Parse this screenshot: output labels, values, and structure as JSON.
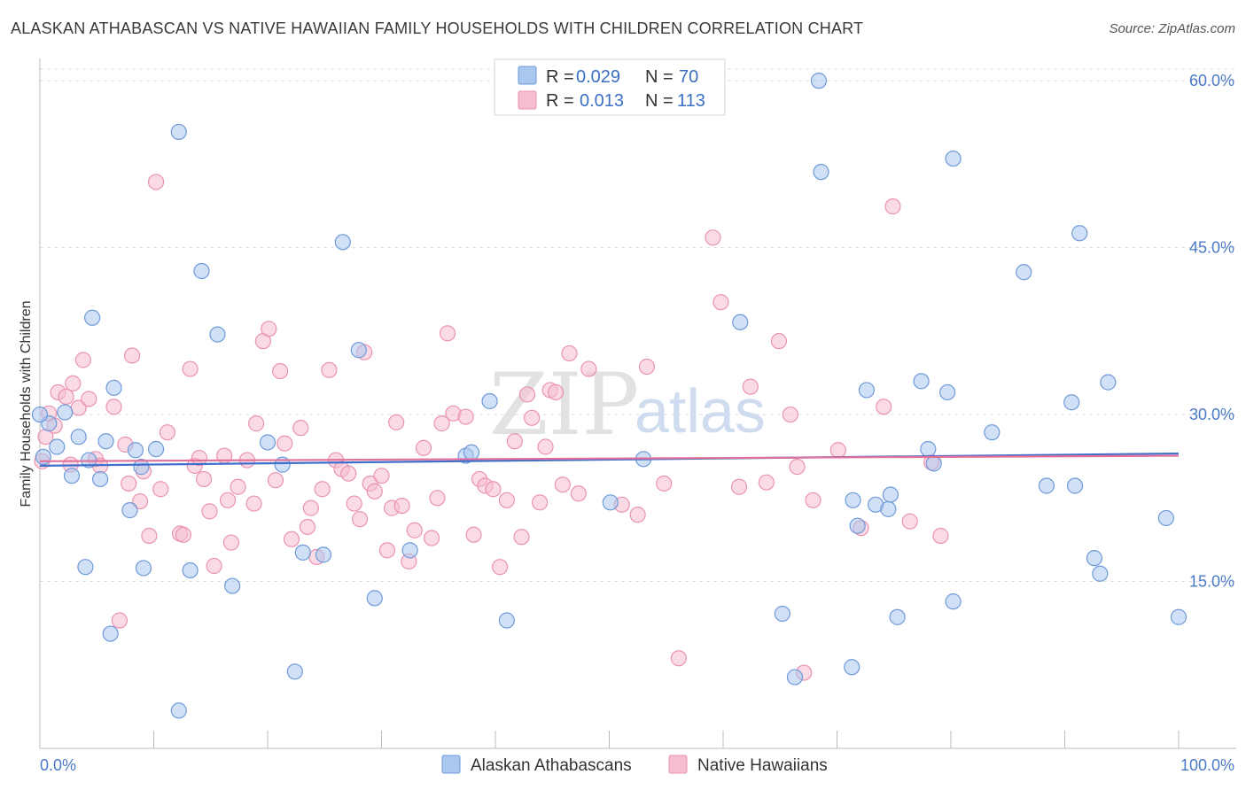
{
  "title": "ALASKAN ATHABASCAN VS NATIVE HAWAIIAN FAMILY HOUSEHOLDS WITH CHILDREN CORRELATION CHART",
  "source": "Source: ZipAtlas.com",
  "watermark": {
    "zip": "ZIP",
    "atlas": "atlas"
  },
  "colors": {
    "blue_fill": "#aac7ef",
    "blue_stroke": "#6f9ad8",
    "blue_line": "#3f6fcb",
    "pink_fill": "#f6bdd0",
    "pink_stroke": "#ea93b0",
    "pink_line": "#e2709a",
    "grid": "#dddddd",
    "tick_text": "#4a7ac8"
  },
  "legend": {
    "rows": [
      {
        "r_label": "R =",
        "r_value": "0.029",
        "n_label": "N =",
        "n_value": "70"
      },
      {
        "r_label": "R =",
        "r_value": "0.013",
        "n_label": "N =",
        "n_value": "113"
      }
    ]
  },
  "chart_data": {
    "type": "scatter",
    "title": "ALASKAN ATHABASCAN VS NATIVE HAWAIIAN FAMILY HOUSEHOLDS WITH CHILDREN CORRELATION CHART",
    "xlabel": "",
    "ylabel": "Family Households with Children",
    "xlim": [
      0,
      100
    ],
    "ylim": [
      0,
      62
    ],
    "x_tick_labels": [
      "0.0%",
      "100.0%"
    ],
    "y_ticks": [
      15,
      30,
      45,
      60
    ],
    "y_tick_labels": [
      "15.0%",
      "30.0%",
      "45.0%",
      "60.0%"
    ],
    "grid": true,
    "legend_position": "bottom",
    "series": [
      {
        "name": "Alaskan Athabascans",
        "r": 0.029,
        "n": 70,
        "trend": {
          "x": [
            0,
            100
          ],
          "y": [
            25.4,
            26.5
          ]
        },
        "points": [
          [
            0.3,
            26.2
          ],
          [
            0.8,
            29.2
          ],
          [
            1.5,
            27.1
          ],
          [
            2.2,
            30.2
          ],
          [
            2.8,
            24.5
          ],
          [
            3.4,
            28.0
          ],
          [
            4.0,
            16.3
          ],
          [
            4.3,
            25.9
          ],
          [
            4.6,
            38.7
          ],
          [
            5.3,
            24.2
          ],
          [
            5.8,
            27.6
          ],
          [
            6.2,
            10.3
          ],
          [
            6.5,
            32.4
          ],
          [
            7.9,
            21.4
          ],
          [
            8.4,
            26.8
          ],
          [
            8.9,
            25.3
          ],
          [
            9.1,
            16.2
          ],
          [
            10.2,
            26.9
          ],
          [
            12.2,
            55.4
          ],
          [
            12.2,
            3.4
          ],
          [
            13.2,
            16.0
          ],
          [
            14.2,
            42.9
          ],
          [
            15.6,
            37.2
          ],
          [
            16.9,
            14.6
          ],
          [
            20.0,
            27.5
          ],
          [
            21.3,
            25.5
          ],
          [
            22.4,
            6.9
          ],
          [
            23.1,
            17.6
          ],
          [
            24.9,
            17.4
          ],
          [
            26.6,
            45.5
          ],
          [
            28.0,
            35.8
          ],
          [
            29.4,
            13.5
          ],
          [
            32.5,
            17.8
          ],
          [
            37.4,
            26.3
          ],
          [
            37.9,
            26.6
          ],
          [
            39.5,
            31.2
          ],
          [
            41.0,
            11.5
          ],
          [
            50.1,
            22.1
          ],
          [
            53.0,
            26.0
          ],
          [
            61.5,
            38.3
          ],
          [
            65.2,
            12.1
          ],
          [
            66.3,
            6.4
          ],
          [
            68.4,
            60.0
          ],
          [
            68.6,
            51.8
          ],
          [
            71.3,
            7.3
          ],
          [
            71.4,
            22.3
          ],
          [
            71.8,
            20.0
          ],
          [
            72.6,
            32.2
          ],
          [
            73.4,
            21.9
          ],
          [
            74.5,
            21.5
          ],
          [
            74.7,
            22.8
          ],
          [
            75.3,
            11.8
          ],
          [
            77.4,
            33.0
          ],
          [
            78.0,
            26.9
          ],
          [
            78.5,
            25.6
          ],
          [
            79.7,
            32.0
          ],
          [
            80.2,
            53.0
          ],
          [
            80.2,
            13.2
          ],
          [
            83.6,
            28.4
          ],
          [
            86.4,
            42.8
          ],
          [
            88.4,
            23.6
          ],
          [
            90.6,
            31.1
          ],
          [
            90.9,
            23.6
          ],
          [
            91.3,
            46.3
          ],
          [
            92.6,
            17.1
          ],
          [
            93.1,
            15.7
          ],
          [
            93.8,
            32.9
          ],
          [
            98.9,
            20.7
          ],
          [
            100.0,
            11.8
          ],
          [
            0.0,
            30.0
          ]
        ]
      },
      {
        "name": "Native Hawaiians",
        "r": 0.013,
        "n": 113,
        "trend": {
          "x": [
            0,
            100
          ],
          "y": [
            25.8,
            26.3
          ]
        },
        "points": [
          [
            0.2,
            25.8
          ],
          [
            0.5,
            28.0
          ],
          [
            0.8,
            30.1
          ],
          [
            1.3,
            29.0
          ],
          [
            1.6,
            32.0
          ],
          [
            2.3,
            31.6
          ],
          [
            2.7,
            25.5
          ],
          [
            2.9,
            32.8
          ],
          [
            3.4,
            30.6
          ],
          [
            3.8,
            34.9
          ],
          [
            4.3,
            31.4
          ],
          [
            4.9,
            26.0
          ],
          [
            5.3,
            25.4
          ],
          [
            6.5,
            30.7
          ],
          [
            7.0,
            11.5
          ],
          [
            7.5,
            27.3
          ],
          [
            7.8,
            23.8
          ],
          [
            8.1,
            35.3
          ],
          [
            8.8,
            22.2
          ],
          [
            9.1,
            24.9
          ],
          [
            9.6,
            19.1
          ],
          [
            10.2,
            50.9
          ],
          [
            10.6,
            23.3
          ],
          [
            11.2,
            28.4
          ],
          [
            12.3,
            19.3
          ],
          [
            12.6,
            19.2
          ],
          [
            13.2,
            34.1
          ],
          [
            13.6,
            25.4
          ],
          [
            14.0,
            26.1
          ],
          [
            14.4,
            24.2
          ],
          [
            14.9,
            21.3
          ],
          [
            15.3,
            16.4
          ],
          [
            16.2,
            26.3
          ],
          [
            16.5,
            22.3
          ],
          [
            16.8,
            18.5
          ],
          [
            17.4,
            23.5
          ],
          [
            18.2,
            25.9
          ],
          [
            18.8,
            22.0
          ],
          [
            19.0,
            29.2
          ],
          [
            19.6,
            36.6
          ],
          [
            20.1,
            37.7
          ],
          [
            20.7,
            24.1
          ],
          [
            21.1,
            33.9
          ],
          [
            21.5,
            27.4
          ],
          [
            22.1,
            18.8
          ],
          [
            22.9,
            28.8
          ],
          [
            23.5,
            19.9
          ],
          [
            23.8,
            21.6
          ],
          [
            24.3,
            17.2
          ],
          [
            24.8,
            23.3
          ],
          [
            25.4,
            34.0
          ],
          [
            26.0,
            25.9
          ],
          [
            26.5,
            25.1
          ],
          [
            27.1,
            24.7
          ],
          [
            27.6,
            22.0
          ],
          [
            28.1,
            20.6
          ],
          [
            28.5,
            35.6
          ],
          [
            29.0,
            23.8
          ],
          [
            29.4,
            23.1
          ],
          [
            30.0,
            24.5
          ],
          [
            30.5,
            17.8
          ],
          [
            30.9,
            21.6
          ],
          [
            31.3,
            29.3
          ],
          [
            31.8,
            21.8
          ],
          [
            32.4,
            16.8
          ],
          [
            32.9,
            19.6
          ],
          [
            33.7,
            27.0
          ],
          [
            34.4,
            18.9
          ],
          [
            34.9,
            22.5
          ],
          [
            35.3,
            29.2
          ],
          [
            35.8,
            37.3
          ],
          [
            36.3,
            30.1
          ],
          [
            37.4,
            29.8
          ],
          [
            38.1,
            19.2
          ],
          [
            38.6,
            24.2
          ],
          [
            39.1,
            23.6
          ],
          [
            39.8,
            23.3
          ],
          [
            40.4,
            16.3
          ],
          [
            41.0,
            22.3
          ],
          [
            41.7,
            27.6
          ],
          [
            42.3,
            19.0
          ],
          [
            42.8,
            31.8
          ],
          [
            43.2,
            29.7
          ],
          [
            43.9,
            22.1
          ],
          [
            44.4,
            27.1
          ],
          [
            44.8,
            32.2
          ],
          [
            45.3,
            32.0
          ],
          [
            45.9,
            23.7
          ],
          [
            46.5,
            35.5
          ],
          [
            47.3,
            22.9
          ],
          [
            48.2,
            34.1
          ],
          [
            51.1,
            21.9
          ],
          [
            52.5,
            21.0
          ],
          [
            53.3,
            34.3
          ],
          [
            54.8,
            23.8
          ],
          [
            56.1,
            8.1
          ],
          [
            59.1,
            45.9
          ],
          [
            59.8,
            40.1
          ],
          [
            61.4,
            23.5
          ],
          [
            62.4,
            32.5
          ],
          [
            63.8,
            23.9
          ],
          [
            64.9,
            36.6
          ],
          [
            65.9,
            30.0
          ],
          [
            66.5,
            25.3
          ],
          [
            67.1,
            6.8
          ],
          [
            67.9,
            22.3
          ],
          [
            70.1,
            26.8
          ],
          [
            72.1,
            19.8
          ],
          [
            74.1,
            30.7
          ],
          [
            74.9,
            48.7
          ],
          [
            76.4,
            20.4
          ],
          [
            78.3,
            25.7
          ],
          [
            79.1,
            19.1
          ]
        ]
      }
    ]
  },
  "bottom_legend": [
    {
      "label": "Alaskan Athabascans"
    },
    {
      "label": "Native Hawaiians"
    }
  ]
}
